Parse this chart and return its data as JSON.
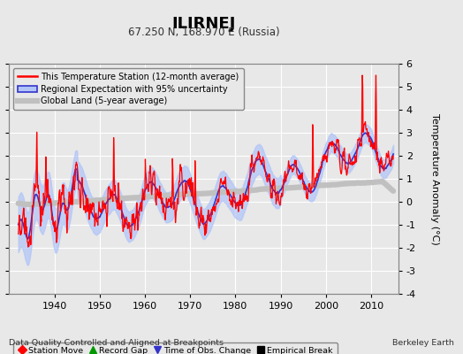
{
  "title": "ILIRNEJ",
  "subtitle": "67.250 N, 168.970 E (Russia)",
  "xlabel_bottom": "Data Quality Controlled and Aligned at Breakpoints",
  "xlabel_right": "Berkeley Earth",
  "ylabel": "Temperature Anomaly (°C)",
  "xlim": [
    1930,
    2016
  ],
  "ylim": [
    -4,
    6
  ],
  "yticks": [
    -4,
    -3,
    -2,
    -1,
    0,
    1,
    2,
    3,
    4,
    5,
    6
  ],
  "xticks": [
    1940,
    1950,
    1960,
    1970,
    1980,
    1990,
    2000,
    2010
  ],
  "background_color": "#e8e8e8",
  "plot_bg": "#e8e8e8",
  "grid_color": "#ffffff",
  "legend_items": [
    {
      "label": "This Temperature Station (12-month average)",
      "color": "#ff0000",
      "lw": 1.5
    },
    {
      "label": "Regional Expectation with 95% uncertainty",
      "color": "#3333cc",
      "lw": 1.5
    },
    {
      "label": "Global Land (5-year average)",
      "color": "#bbbbbb",
      "lw": 5
    }
  ],
  "marker_legend": [
    {
      "label": "Station Move",
      "color": "#ff0000",
      "marker": "D"
    },
    {
      "label": "Record Gap",
      "color": "#009900",
      "marker": "^"
    },
    {
      "label": "Time of Obs. Change",
      "color": "#3333cc",
      "marker": "v"
    },
    {
      "label": "Empirical Break",
      "color": "#000000",
      "marker": "s"
    }
  ]
}
